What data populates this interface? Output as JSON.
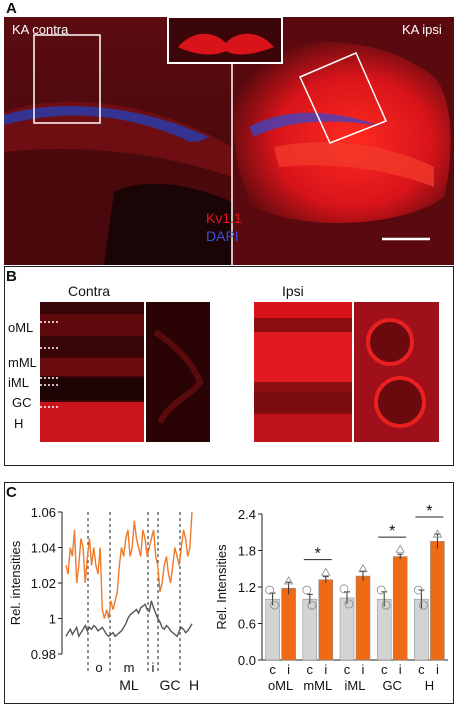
{
  "panelA": {
    "letter": "A",
    "left_label": "KA contra",
    "right_label": "KA ipsi",
    "legend_kv": "Kv1.1",
    "legend_dapi": "DAPI",
    "colors": {
      "kv": "#e8141e",
      "dapi": "#3a4fd8",
      "bg": "#4a0a0c"
    }
  },
  "panelB": {
    "letter": "B",
    "contra_title": "Contra",
    "ipsi_title": "Ipsi",
    "layers": [
      "oML",
      "mML",
      "iML",
      "GC",
      "H"
    ]
  },
  "panelC": {
    "letter": "C",
    "chart_data": [
      {
        "type": "line",
        "ylabel": "Rel. intensities",
        "ylim": [
          0.98,
          1.06
        ],
        "yticks": [
          "0.98",
          "1",
          "1.02",
          "1.04",
          "1.06"
        ],
        "region_labels": {
          "o": "o",
          "m": "m",
          "i": "i",
          "ML": "ML",
          "GC": "GC",
          "H": "H"
        },
        "series": [
          {
            "color": "#ee7a2a",
            "values": [
              1.03,
              1.025,
              1.04,
              1.035,
              1.05,
              1.02,
              1.03,
              1.045,
              1.04,
              1.02,
              1.035,
              1.045,
              1.03,
              1.04,
              1.03,
              1.025,
              1.04,
              1.005,
              1.0,
              1.005,
              1.0,
              1.01,
              1.005,
              1.01,
              1.015,
              1.03,
              1.04,
              1.035,
              1.045,
              1.05,
              1.035,
              1.04,
              1.055,
              1.045,
              1.04,
              1.035,
              1.05,
              1.045,
              1.035,
              1.04,
              1.045,
              1.05,
              1.035,
              1.03,
              1.015,
              1.02,
              1.03,
              1.035,
              1.025,
              1.02,
              1.03,
              1.04,
              1.035,
              1.03,
              1.04,
              1.05,
              1.045,
              1.035,
              1.04,
              1.06
            ]
          },
          {
            "color": "#555555",
            "values": [
              0.99,
              0.992,
              0.994,
              0.991,
              0.993,
              0.995,
              0.99,
              0.992,
              0.994,
              0.996,
              0.993,
              0.995,
              0.994,
              0.996,
              0.995,
              0.993,
              0.994,
              0.995,
              0.993,
              0.991,
              0.99,
              0.991,
              0.992,
              0.99,
              0.991,
              0.992,
              0.993,
              0.995,
              0.997,
              1.0,
              1.002,
              1.003,
              1.004,
              1.005,
              1.003,
              1.006,
              1.007,
              1.008,
              1.005,
              1.004,
              1.01,
              1.006,
              1.003,
              1.0,
              0.998,
              0.995,
              0.994,
              0.996,
              0.995,
              0.993,
              0.992,
              0.991,
              0.99,
              0.993,
              0.995,
              0.994,
              0.992,
              0.993,
              0.995,
              0.997
            ]
          }
        ]
      },
      {
        "type": "bar",
        "ylabel": "Rel. Intensities",
        "ylim": [
          0.0,
          2.4
        ],
        "yticks": [
          "0.0",
          "0.6",
          "1.2",
          "1.8",
          "2.4"
        ],
        "categories": [
          "oML",
          "mML",
          "iML",
          "GC",
          "H"
        ],
        "sub_labels": [
          "c",
          "i"
        ],
        "significance_marker": "*",
        "significant": [
          false,
          true,
          false,
          true,
          true
        ],
        "series": [
          {
            "color": "#d3d3d3",
            "values": [
              1.0,
              1.0,
              1.02,
              1.0,
              1.0
            ],
            "errors": [
              0.1,
              0.08,
              0.1,
              0.12,
              0.15
            ]
          },
          {
            "color": "#ee6a14",
            "values": [
              1.18,
              1.32,
              1.38,
              1.7,
              1.95
            ],
            "errors": [
              0.1,
              0.05,
              0.08,
              0.04,
              0.12
            ]
          }
        ]
      }
    ]
  }
}
